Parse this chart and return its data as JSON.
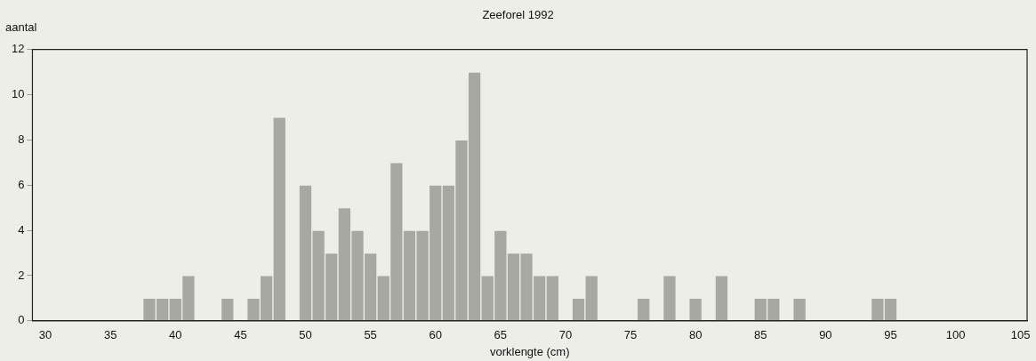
{
  "chart_data": {
    "type": "histogram",
    "title": "Zeeforel 1992",
    "xlabel": "vorklengte (cm)",
    "ylabel": "aantal",
    "bins": [
      37.5,
      38.5,
      39.5,
      40.5,
      41.5,
      42.5,
      43.5,
      44.5,
      45.5,
      46.5,
      47.5,
      48.5,
      49.5,
      50.5,
      51.5,
      52.5,
      53.5,
      54.5,
      55.5,
      56.5,
      57.5,
      58.5,
      59.5,
      60.5,
      61.5,
      62.5,
      63.5,
      64.5,
      65.5,
      66.5,
      67.5,
      68.5,
      69.5,
      70.5,
      71.5,
      72.5,
      73.5,
      74.5,
      75.5,
      76.5,
      77.5,
      78.5,
      79.5,
      80.5,
      81.5,
      82.5,
      83.5,
      84.5,
      85.5,
      86.5,
      87.5,
      88.5,
      89.5,
      90.5,
      91.5,
      92.5,
      93.5,
      94.5,
      95.5
    ],
    "values": [
      1,
      1,
      1,
      2,
      0,
      0,
      1,
      0,
      1,
      2,
      9,
      0,
      6,
      4,
      3,
      5,
      4,
      3,
      2,
      7,
      4,
      4,
      6,
      6,
      8,
      11,
      2,
      4,
      3,
      3,
      2,
      2,
      0,
      1,
      2,
      0,
      0,
      0,
      1,
      0,
      2,
      0,
      1,
      0,
      2,
      0,
      0,
      1,
      1,
      0,
      1,
      0,
      0,
      0,
      0,
      0,
      1,
      1
    ],
    "color": "#a8a8a2",
    "xlim": [
      29,
      105.5
    ],
    "xticks": [
      30,
      35,
      40,
      45,
      50,
      55,
      60,
      65,
      70,
      75,
      80,
      85,
      90,
      95,
      100,
      105
    ],
    "ylim": [
      0,
      12
    ],
    "yticks": [
      0,
      2,
      4,
      6,
      8,
      10,
      12
    ],
    "grid": false,
    "legend": false
  }
}
